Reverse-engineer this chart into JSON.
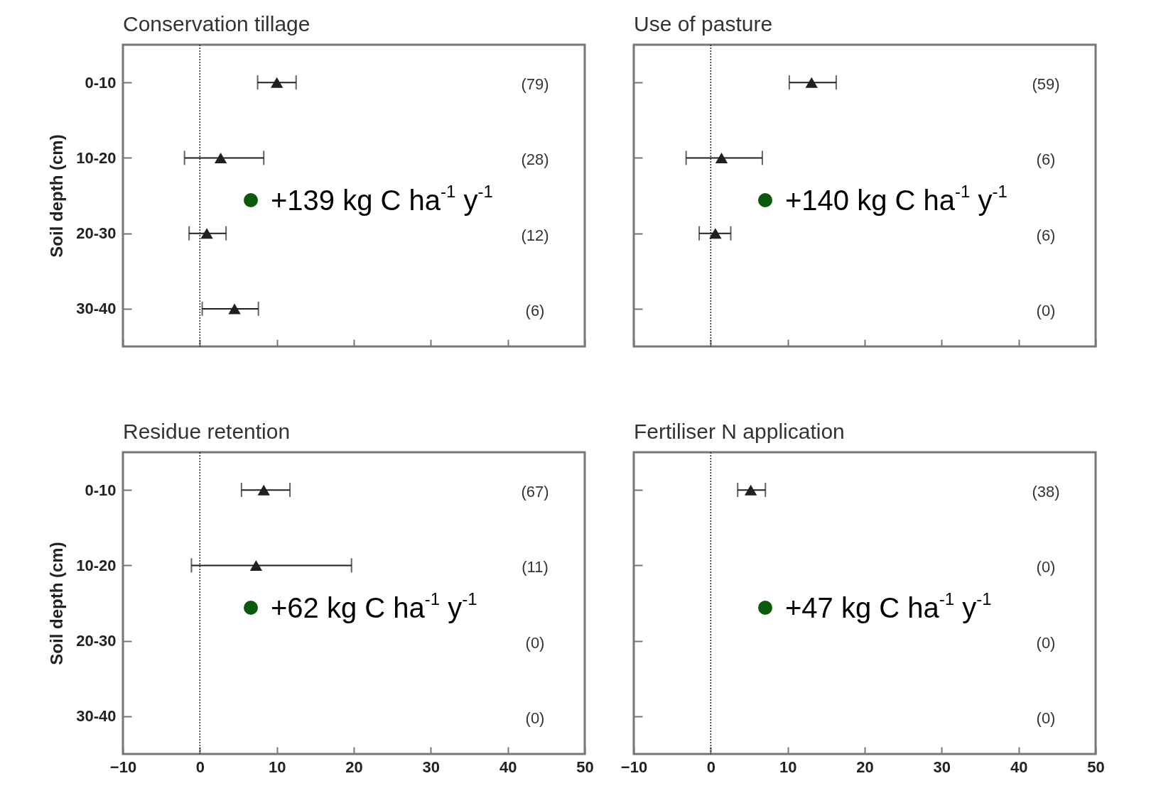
{
  "chart_data": [
    {
      "type": "scatter",
      "title": "Conservation tillage",
      "ylabel": "Soil depth (cm)",
      "orientation": "horizontal",
      "categories": [
        "0-10",
        "10-20",
        "20-30",
        "30-40"
      ],
      "values": [
        10.0,
        2.7,
        0.9,
        4.5
      ],
      "errors": [
        [
          7.5,
          12.5
        ],
        [
          -2.0,
          8.3
        ],
        [
          -1.4,
          3.4
        ],
        [
          0.3,
          7.6
        ]
      ],
      "color": "#231f20",
      "marker": "triangle",
      "xlim": [
        -10,
        50
      ],
      "xticks": [
        -10,
        0,
        10,
        20,
        30,
        40,
        50
      ],
      "tick_labels": "y",
      "ref_lines": [
        {
          "axis": "x",
          "value": 0,
          "line_style": "dotted"
        }
      ],
      "annotations": [
        "(79)",
        "(28)",
        "(12)",
        "(6)",
        "+139 kg C ha$^{-1}$ y$^{-1}$"
      ]
    },
    {
      "type": "scatter",
      "title": "Use of pasture",
      "orientation": "horizontal",
      "categories": [
        null,
        null,
        null,
        null
      ],
      "values": [
        13.1,
        1.4,
        0.6,
        null
      ],
      "errors": [
        [
          10.2,
          16.3
        ],
        [
          -3.2,
          6.7
        ],
        [
          -1.5,
          2.6
        ],
        null
      ],
      "color": "#231f20",
      "marker": "triangle",
      "xlim": [
        -10,
        50
      ],
      "xticks": [
        -10,
        0,
        10,
        20,
        30,
        40,
        50
      ],
      "tick_labels": false,
      "ref_lines": [
        {
          "axis": "x",
          "value": 0,
          "line_style": "dotted"
        }
      ],
      "annotations": [
        "(59)",
        "(6)",
        "(6)",
        "(0)",
        "+140 kg C ha$^{-1}$ y$^{-1}$"
      ]
    },
    {
      "type": "scatter",
      "title": "Residue retention",
      "ylabel": "Soil depth (cm)",
      "orientation": "horizontal",
      "categories": [
        "0-10",
        "10-20",
        "20-30",
        "30-40"
      ],
      "values": [
        8.3,
        7.3,
        null,
        null
      ],
      "errors": [
        [
          5.4,
          11.7
        ],
        [
          -1.1,
          19.7
        ],
        null,
        null
      ],
      "color": "#231f20",
      "marker": "triangle",
      "xlim": [
        -10,
        50
      ],
      "xticks": [
        -10,
        0,
        10,
        20,
        30,
        40,
        50
      ],
      "ref_lines": [
        {
          "axis": "x",
          "value": 0,
          "line_style": "dotted"
        }
      ],
      "annotations": [
        "(67)",
        "(11)",
        "(0)",
        "(0)",
        "+62 kg C ha$^{-1}$ y$^{-1}$"
      ]
    },
    {
      "type": "scatter",
      "title": "Fertiliser N application",
      "orientation": "horizontal",
      "categories": [
        null,
        null,
        null,
        null
      ],
      "values": [
        5.2,
        null,
        null,
        null
      ],
      "errors": [
        [
          3.5,
          7.1
        ],
        null,
        null,
        null
      ],
      "color": "#231f20",
      "marker": "triangle",
      "xlim": [
        -10,
        50
      ],
      "xticks": [
        -10,
        0,
        10,
        20,
        30,
        40,
        50
      ],
      "tick_labels": "x",
      "ref_lines": [
        {
          "axis": "x",
          "value": 0,
          "line_style": "dotted"
        }
      ],
      "annotations": [
        "(38)",
        "(0)",
        "(0)",
        "(0)",
        "+47 kg C ha$^{-1}$ y$^{-1}$"
      ]
    }
  ]
}
